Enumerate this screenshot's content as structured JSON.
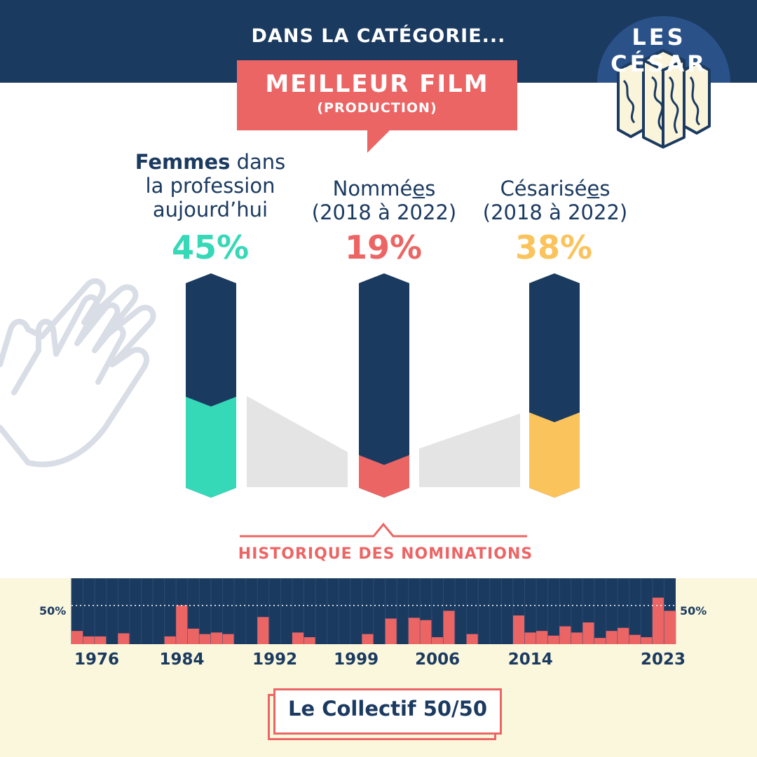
{
  "header": {
    "kicker": "DANS LA CATÉGORIE...",
    "brand": "LES CÉSAR"
  },
  "category": {
    "title": "MEILLEUR FILM",
    "subtitle": "(PRODUCTION)"
  },
  "colors": {
    "navy": "#1b3a60",
    "teal": "#35d8b7",
    "coral": "#ec6565",
    "gold": "#fbc35c",
    "cream": "#faf7dc",
    "connector_gray": "#e4e4e4"
  },
  "icons": [
    "clapping-hands-icon",
    "cesar-trophy-icon"
  ],
  "chart_data": [
    {
      "type": "bar",
      "categories": [
        {
          "label_bold": "Femmes",
          "label_rest": " dans",
          "line2": "la profession",
          "line3": "aujourd’hui"
        },
        {
          "label": "Nommé",
          "label_u": "e",
          "label_end": "s",
          "line2": "(2018 à 2022)"
        },
        {
          "label": "Césarisé",
          "label_u": "e",
          "label_end": "s",
          "line2": "(2018 à 2022)"
        }
      ],
      "value_labels": [
        "45%",
        "19%",
        "38%"
      ],
      "values": [
        45,
        19,
        38
      ],
      "value_colors": [
        "#35d8b7",
        "#ec6565",
        "#fbc35c"
      ],
      "ylim": [
        0,
        100
      ]
    },
    {
      "type": "bar",
      "title": "HISTORIQUE DES NOMINATIONS",
      "reference_line": 50,
      "reference_label": "50%",
      "ylim": [
        0,
        85
      ],
      "x_ticks": [
        "1976",
        "1984",
        "1992",
        "1999",
        "2006",
        "2014",
        "2023"
      ],
      "values": [
        17,
        10,
        10,
        0,
        14,
        0,
        0,
        0,
        10,
        50,
        20,
        13,
        15,
        13,
        0,
        0,
        35,
        0,
        0,
        15,
        9,
        0,
        0,
        0,
        0,
        13,
        0,
        33,
        0,
        34,
        31,
        9,
        43,
        0,
        13,
        0,
        0,
        0,
        37,
        15,
        17,
        11,
        23,
        15,
        28,
        8,
        17,
        21,
        12,
        9,
        60,
        43
      ]
    }
  ],
  "footer": {
    "label": "Le Collectif 50/50"
  }
}
